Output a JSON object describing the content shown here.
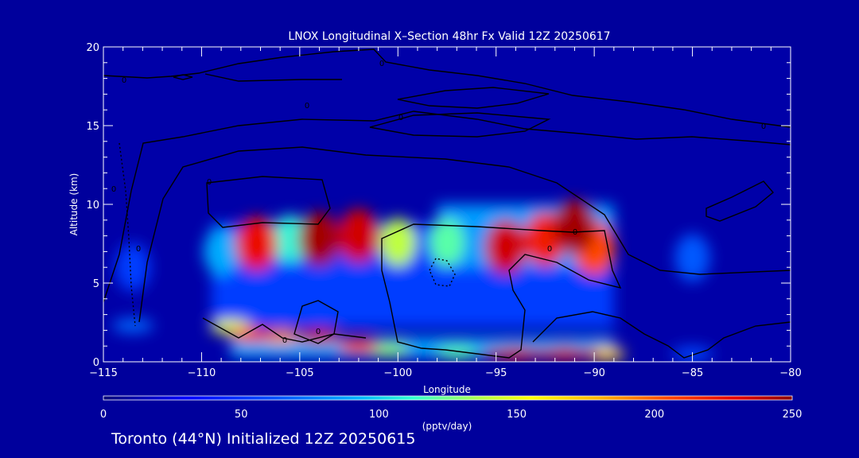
{
  "colors": {
    "background": "#00009c",
    "plot_background": "#0000a8",
    "axis": "#ffffff",
    "contour": "#000000"
  },
  "chart_data": {
    "type": "heatmap",
    "title": "LNOX Longitudinal X–Section 48hr  Fx Valid 12Z 20250617",
    "xlabel": "Longitude",
    "ylabel": "Altitude (km)",
    "xlim": [
      -115,
      -80
    ],
    "ylim": [
      0,
      20
    ],
    "xticks": [
      -115,
      -110,
      -105,
      -100,
      -95,
      -90,
      -85,
      -80
    ],
    "yticks": [
      0,
      5,
      10,
      15,
      20
    ],
    "grid": false,
    "colorbar": {
      "label": "(pptv/day)",
      "ticks": [
        0,
        50,
        100,
        150,
        200,
        250
      ],
      "range": [
        0,
        250
      ]
    },
    "hotspots": [
      {
        "lon": -113.5,
        "alt": 6.0,
        "value": 55
      },
      {
        "lon": -113.5,
        "alt": 2.3,
        "value": 70
      },
      {
        "lon": -109.0,
        "alt": 7.0,
        "value": 90
      },
      {
        "lon": -107.2,
        "alt": 7.5,
        "value": 225
      },
      {
        "lon": -105.5,
        "alt": 7.8,
        "value": 110
      },
      {
        "lon": -104.0,
        "alt": 7.8,
        "value": 245
      },
      {
        "lon": -102.0,
        "alt": 8.0,
        "value": 235
      },
      {
        "lon": -100.0,
        "alt": 7.6,
        "value": 140
      },
      {
        "lon": -97.5,
        "alt": 7.6,
        "value": 120
      },
      {
        "lon": -94.5,
        "alt": 7.3,
        "value": 235
      },
      {
        "lon": -92.5,
        "alt": 7.8,
        "value": 220
      },
      {
        "lon": -91.0,
        "alt": 8.6,
        "value": 245
      },
      {
        "lon": -90.0,
        "alt": 7.2,
        "value": 205
      },
      {
        "lon": -85.0,
        "alt": 6.6,
        "value": 65
      },
      {
        "lon": -108.5,
        "alt": 2.2,
        "value": 150
      },
      {
        "lon": -107.5,
        "alt": 1.7,
        "value": 215
      },
      {
        "lon": -106.0,
        "alt": 1.6,
        "value": 190
      },
      {
        "lon": -104.0,
        "alt": 1.6,
        "value": 235
      },
      {
        "lon": -102.0,
        "alt": 1.0,
        "value": 210
      },
      {
        "lon": -100.5,
        "alt": 0.8,
        "value": 130
      },
      {
        "lon": -97.0,
        "alt": 0.6,
        "value": 120
      },
      {
        "lon": -94.0,
        "alt": 0.5,
        "value": 235
      },
      {
        "lon": -91.5,
        "alt": 0.5,
        "value": 235
      },
      {
        "lon": -89.5,
        "alt": 0.5,
        "value": 170
      },
      {
        "lon": -85.0,
        "alt": 0.5,
        "value": 60
      }
    ],
    "contour_label": "0"
  },
  "footer": "Toronto (44°N) Initialized 12Z 20250615"
}
